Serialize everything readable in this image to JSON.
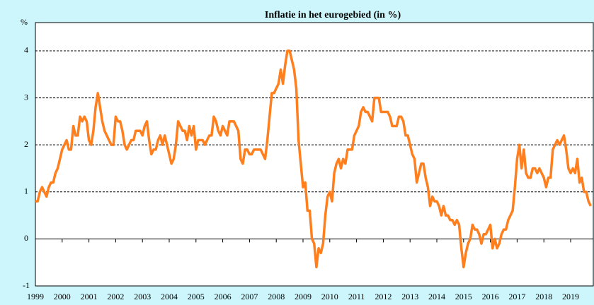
{
  "chart_data": {
    "type": "line",
    "title": "Inflatie in het eurogebied (in %)",
    "y_label": "%",
    "categories": [
      "1999",
      null,
      null,
      null,
      null,
      null,
      null,
      null,
      null,
      null,
      null,
      null,
      "2000",
      null,
      null,
      null,
      null,
      null,
      null,
      null,
      null,
      null,
      null,
      null,
      "2001",
      null,
      null,
      null,
      null,
      null,
      null,
      null,
      null,
      null,
      null,
      null,
      "2002",
      null,
      null,
      null,
      null,
      null,
      null,
      null,
      null,
      null,
      null,
      null,
      "2003",
      null,
      null,
      null,
      null,
      null,
      null,
      null,
      null,
      null,
      null,
      null,
      "2004",
      null,
      null,
      null,
      null,
      null,
      null,
      null,
      null,
      null,
      null,
      null,
      "2005",
      null,
      null,
      null,
      null,
      null,
      null,
      null,
      null,
      null,
      null,
      null,
      "2006",
      null,
      null,
      null,
      null,
      null,
      null,
      null,
      null,
      null,
      null,
      null,
      "2007",
      null,
      null,
      null,
      null,
      null,
      null,
      null,
      null,
      null,
      null,
      null,
      "2008",
      null,
      null,
      null,
      null,
      null,
      null,
      null,
      null,
      null,
      null,
      null,
      "2009",
      null,
      null,
      null,
      null,
      null,
      null,
      null,
      null,
      null,
      null,
      null,
      "2010",
      null,
      null,
      null,
      null,
      null,
      null,
      null,
      null,
      null,
      null,
      null,
      "2011",
      null,
      null,
      null,
      null,
      null,
      null,
      null,
      null,
      null,
      null,
      null,
      "2012",
      null,
      null,
      null,
      null,
      null,
      null,
      null,
      null,
      null,
      null,
      null,
      "2013",
      null,
      null,
      null,
      null,
      null,
      null,
      null,
      null,
      null,
      null,
      null,
      "2014",
      null,
      null,
      null,
      null,
      null,
      null,
      null,
      null,
      null,
      null,
      null,
      "2015",
      null,
      null,
      null,
      null,
      null,
      null,
      null,
      null,
      null,
      null,
      null,
      "2016",
      null,
      null,
      null,
      null,
      null,
      null,
      null,
      null,
      null,
      null,
      null,
      "2017",
      null,
      null,
      null,
      null,
      null,
      null,
      null,
      null,
      null,
      null,
      null,
      "2018",
      null,
      null,
      null,
      null,
      null,
      null,
      null,
      null,
      null,
      null,
      null,
      "2019",
      null,
      null,
      null,
      null,
      null,
      null,
      null,
      null,
      null
    ],
    "values": [
      0.8,
      0.8,
      1.0,
      1.1,
      1.0,
      0.9,
      1.1,
      1.2,
      1.2,
      1.4,
      1.5,
      1.7,
      1.9,
      2.0,
      2.1,
      1.9,
      1.9,
      2.4,
      2.2,
      2.2,
      2.6,
      2.5,
      2.6,
      2.5,
      2.1,
      2.0,
      2.3,
      2.8,
      3.1,
      2.8,
      2.5,
      2.3,
      2.2,
      2.1,
      2.0,
      2.0,
      2.6,
      2.5,
      2.5,
      2.3,
      2.0,
      1.9,
      2.0,
      2.1,
      2.1,
      2.3,
      2.3,
      2.3,
      2.2,
      2.4,
      2.5,
      2.1,
      1.8,
      1.9,
      1.9,
      2.1,
      2.2,
      2.0,
      2.2,
      2.0,
      1.8,
      1.6,
      1.7,
      2.0,
      2.5,
      2.4,
      2.3,
      2.3,
      2.1,
      2.4,
      2.2,
      2.4,
      1.9,
      2.1,
      2.1,
      2.1,
      2.0,
      2.1,
      2.2,
      2.2,
      2.6,
      2.5,
      2.3,
      2.2,
      2.4,
      2.3,
      2.2,
      2.5,
      2.5,
      2.5,
      2.4,
      2.3,
      1.7,
      1.6,
      1.9,
      1.9,
      1.8,
      1.8,
      1.9,
      1.9,
      1.9,
      1.9,
      1.8,
      1.7,
      2.1,
      2.6,
      3.1,
      3.1,
      3.2,
      3.3,
      3.6,
      3.3,
      3.7,
      4.0,
      4.0,
      3.8,
      3.6,
      3.2,
      2.1,
      1.6,
      1.1,
      1.2,
      0.6,
      0.6,
      0.0,
      -0.1,
      -0.6,
      -0.2,
      -0.3,
      -0.1,
      0.5,
      0.9,
      1.0,
      0.8,
      1.4,
      1.6,
      1.7,
      1.5,
      1.7,
      1.6,
      1.9,
      1.9,
      1.9,
      2.2,
      2.3,
      2.4,
      2.7,
      2.8,
      2.7,
      2.7,
      2.6,
      2.5,
      3.0,
      3.0,
      3.0,
      2.7,
      2.7,
      2.7,
      2.7,
      2.6,
      2.4,
      2.4,
      2.4,
      2.6,
      2.6,
      2.5,
      2.2,
      2.2,
      2.0,
      1.8,
      1.7,
      1.2,
      1.4,
      1.6,
      1.6,
      1.3,
      1.1,
      0.7,
      0.9,
      0.8,
      0.8,
      0.7,
      0.5,
      0.7,
      0.5,
      0.5,
      0.4,
      0.4,
      0.3,
      0.4,
      0.3,
      -0.2,
      -0.6,
      -0.3,
      -0.1,
      0.0,
      0.3,
      0.2,
      0.2,
      0.1,
      -0.1,
      0.1,
      0.1,
      0.2,
      0.3,
      -0.2,
      0.0,
      -0.2,
      -0.1,
      0.1,
      0.2,
      0.2,
      0.4,
      0.5,
      0.6,
      1.1,
      1.7,
      2.0,
      1.5,
      1.9,
      1.4,
      1.3,
      1.3,
      1.5,
      1.5,
      1.4,
      1.5,
      1.4,
      1.3,
      1.1,
      1.3,
      1.3,
      1.9,
      2.0,
      2.1,
      2.0,
      2.1,
      2.2,
      1.9,
      1.5,
      1.4,
      1.5,
      1.4,
      1.7,
      1.2,
      1.3,
      1.0,
      1.0,
      0.8,
      0.7
    ],
    "color": "#ff7f1e",
    "ylim": [
      -1,
      4.6
    ],
    "yticks": [
      -1,
      0,
      1,
      2,
      3,
      4
    ],
    "grid": true
  }
}
